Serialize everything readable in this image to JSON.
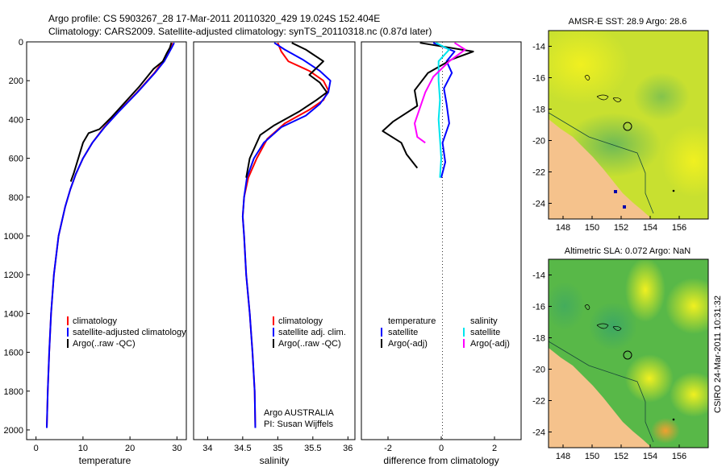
{
  "header": {
    "title_line1": "Argo profile: CS 5903267_28 17-Mar-2011 20110320_429 19.024S 152.404E",
    "title_line2": "Climatology: CARS2009. Satellite-adjusted climatology: synTS_20110318.nc (0.87d later)"
  },
  "credit": "CSIRO 24-Mar-2011 10:31:32",
  "colors": {
    "climatology": "#ff0000",
    "satellite": "#0000ff",
    "argo": "#000000",
    "sal_satellite": "#00e5ee",
    "sal_argo": "#ff00ff",
    "land": "#f5c28c"
  },
  "chart_data": [
    {
      "type": "line",
      "xlabel": "temperature",
      "ylabel": "",
      "xlim": [
        -2,
        32
      ],
      "ylim": [
        2050,
        0
      ],
      "xticks": [
        "0",
        "10",
        "20",
        "30"
      ],
      "yticks": [
        "0",
        "200",
        "400",
        "600",
        "800",
        "1000",
        "1200",
        "1400",
        "1600",
        "1800",
        "2000"
      ],
      "legend": [
        "climatology",
        "satellite-adjusted climatology",
        "Argo(..raw -QC)"
      ],
      "legend_placement": "lower-right",
      "series": [
        {
          "name": "climatology",
          "color": "#ff0000",
          "x": [
            29.0,
            28.6,
            27.0,
            25.2,
            21.5,
            17.5,
            14.5,
            12.0,
            10.0,
            8.5,
            7.3,
            6.2,
            4.8,
            3.8,
            3.2,
            2.8,
            2.5,
            2.3
          ],
          "y": [
            5,
            30,
            100,
            160,
            260,
            360,
            440,
            520,
            600,
            680,
            760,
            850,
            1000,
            1200,
            1400,
            1600,
            1800,
            1990
          ]
        },
        {
          "name": "satellite-adjusted climatology",
          "color": "#0000ff",
          "x": [
            29.4,
            28.9,
            27.3,
            25.3,
            21.6,
            17.6,
            14.6,
            12.0,
            10.0,
            8.5,
            7.3,
            6.2,
            4.8,
            3.8,
            3.2,
            2.8,
            2.5,
            2.3
          ],
          "y": [
            5,
            30,
            100,
            160,
            260,
            360,
            440,
            520,
            600,
            680,
            760,
            850,
            1000,
            1200,
            1400,
            1600,
            1800,
            1990
          ]
        },
        {
          "name": "Argo(..raw -QC)",
          "color": "#000000",
          "x": [
            28.8,
            28.5,
            27.8,
            27.0,
            25.0,
            22.0,
            19.0,
            16.0,
            13.5,
            11.2,
            10.0,
            9.0,
            8.0,
            7.4
          ],
          "y": [
            5,
            30,
            60,
            100,
            140,
            230,
            310,
            390,
            450,
            470,
            520,
            600,
            680,
            720
          ]
        }
      ]
    },
    {
      "type": "line",
      "xlabel": "salinity",
      "xlim": [
        33.8,
        36.1
      ],
      "ylim": [
        2050,
        0
      ],
      "xticks": [
        "34",
        "34.5",
        "35",
        "35.5",
        "36"
      ],
      "legend": [
        "climatology",
        "satellite adj. clim.",
        "Argo(..raw -QC)"
      ],
      "legend_placement": "lower-right",
      "annotation": [
        "Argo AUSTRALIA",
        "PI: Susan Wijffels"
      ],
      "series": [
        {
          "name": "climatology",
          "color": "#ff0000",
          "x": [
            35.0,
            35.05,
            35.15,
            35.45,
            35.65,
            35.72,
            35.65,
            35.45,
            35.1,
            34.85,
            34.7,
            34.58,
            34.52,
            34.5,
            34.52,
            34.55,
            34.6,
            34.64,
            34.67,
            34.68
          ],
          "y": [
            5,
            50,
            100,
            150,
            200,
            250,
            300,
            350,
            420,
            500,
            600,
            700,
            800,
            900,
            1000,
            1200,
            1400,
            1600,
            1800,
            1990
          ]
        },
        {
          "name": "satellite adj. clim.",
          "color": "#0000ff",
          "x": [
            34.95,
            35.1,
            35.35,
            35.6,
            35.75,
            35.72,
            35.6,
            35.4,
            35.05,
            34.8,
            34.66,
            34.56,
            34.52,
            34.5,
            34.52,
            34.55,
            34.6,
            34.64,
            34.67,
            34.68
          ],
          "y": [
            5,
            40,
            90,
            150,
            200,
            260,
            320,
            380,
            440,
            520,
            600,
            700,
            800,
            900,
            1000,
            1200,
            1400,
            1600,
            1800,
            1990
          ]
        },
        {
          "name": "Argo(..raw -QC)",
          "color": "#000000",
          "x": [
            35.2,
            35.4,
            35.65,
            35.45,
            35.6,
            35.7,
            35.55,
            35.3,
            34.95,
            34.75,
            34.6,
            34.55
          ],
          "y": [
            5,
            40,
            100,
            170,
            210,
            260,
            300,
            360,
            430,
            480,
            600,
            700
          ]
        }
      ]
    },
    {
      "type": "line",
      "xlabel": "difference from climatology",
      "xlim": [
        -3.0,
        3.0
      ],
      "ylim": [
        2050,
        0
      ],
      "xticks": [
        "-2",
        "0",
        "2"
      ],
      "legend": [
        "temperature",
        "satellite",
        "Argo(-adj)",
        "salinity",
        "satellite",
        "Argo(-adj)"
      ],
      "legend_placement": "lower-center",
      "series": [
        {
          "name": "satellite",
          "color": "#0000ff",
          "x": [
            -0.3,
            0.5,
            0.2,
            0.4,
            0.1,
            0.2,
            0.3,
            0.05,
            0.15,
            0.0
          ],
          "y": [
            5,
            50,
            100,
            160,
            240,
            320,
            420,
            520,
            620,
            700
          ]
        },
        {
          "name": "Argo(-adj)",
          "color": "#000000",
          "x": [
            -0.8,
            1.2,
            0.4,
            -0.5,
            -1.0,
            -0.9,
            -1.8,
            -2.2,
            -1.5,
            -1.3,
            -0.9
          ],
          "y": [
            5,
            50,
            90,
            160,
            250,
            330,
            410,
            460,
            520,
            580,
            650
          ]
        },
        {
          "name": "satellite",
          "color": "#00e5ee",
          "x": [
            -0.2,
            0.3,
            -0.1,
            -0.1,
            -0.05,
            -0.1,
            -0.05,
            0.0,
            -0.05
          ],
          "y": [
            5,
            40,
            100,
            200,
            300,
            400,
            500,
            600,
            700
          ]
        },
        {
          "name": "Argo(-adj)",
          "color": "#ff00ff",
          "x": [
            0.5,
            0.9,
            0.3,
            -0.3,
            -0.6,
            -0.8,
            -1.0,
            -0.9,
            -0.6
          ],
          "y": [
            5,
            40,
            100,
            180,
            260,
            340,
            420,
            490,
            520
          ]
        }
      ]
    },
    {
      "type": "heatmap",
      "title": "AMSR-E SST: 28.9 Argo: 28.6",
      "xlim": [
        147,
        158
      ],
      "ylim": [
        -25,
        -13
      ],
      "xticks": [
        "148",
        "150",
        "152",
        "154",
        "156"
      ],
      "yticks": [
        "-14",
        "-16",
        "-18",
        "-20",
        "-22",
        "-24"
      ],
      "argo_position": [
        152.404,
        -19.024
      ]
    },
    {
      "type": "heatmap",
      "title": "Altimetric SLA: 0.072 Argo: NaN",
      "xlim": [
        147,
        158
      ],
      "ylim": [
        -25,
        -13
      ],
      "xticks": [
        "148",
        "150",
        "152",
        "154",
        "156"
      ],
      "yticks": [
        "-14",
        "-16",
        "-18",
        "-20",
        "-22",
        "-24"
      ],
      "argo_position": [
        152.404,
        -19.024
      ]
    }
  ]
}
